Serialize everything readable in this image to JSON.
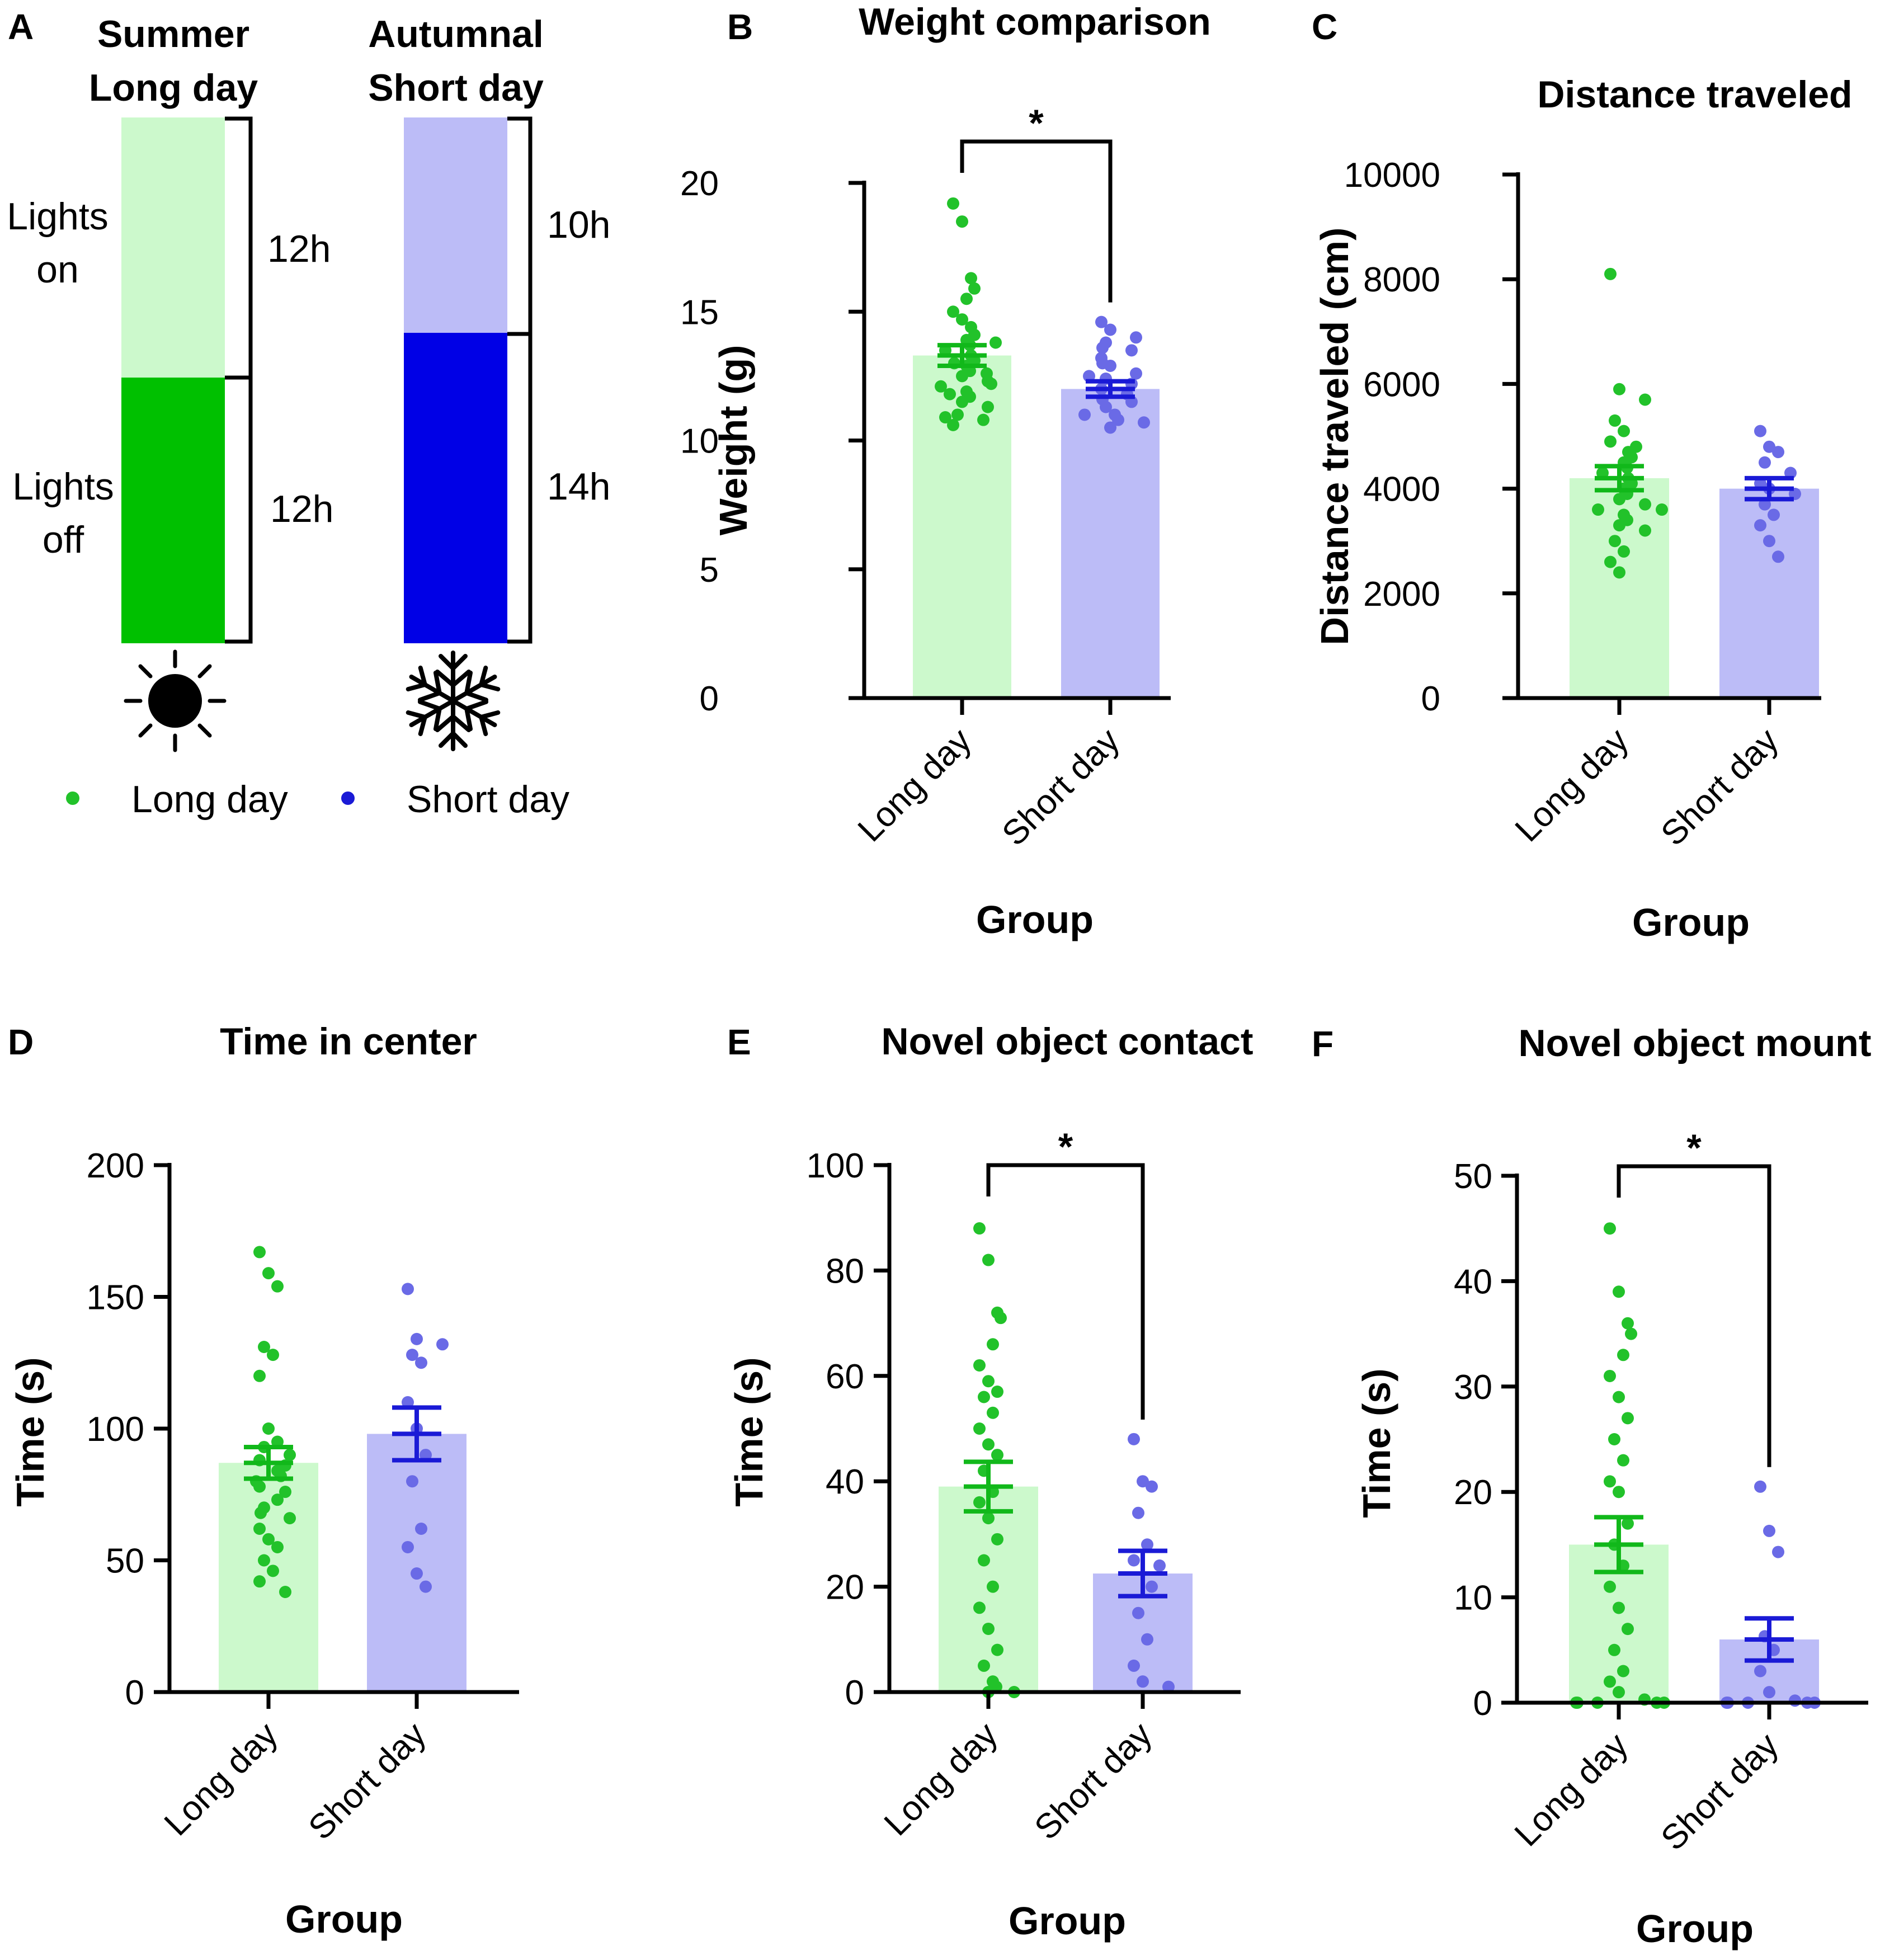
{
  "colors": {
    "long_light": "#ccf9cc",
    "long_dark": "#00c000",
    "long_dot": "#22c22a",
    "short_light": "#bcbcf7",
    "short_dark": "#0000e6",
    "short_dot": "#6a6ae6",
    "short_err": "#1a1ad6",
    "long_err": "#11b81a"
  },
  "panel_a": {
    "panel_label": "A",
    "summer_title": [
      "Summer",
      "Long day"
    ],
    "autumn_title": [
      "Autumnal",
      "Short day"
    ],
    "lights_on": [
      "Lights",
      "on"
    ],
    "lights_off": [
      "Lights",
      "off"
    ],
    "summer_on_hours": "12h",
    "summer_off_hours": "12h",
    "autumn_on_hours": "10h",
    "autumn_off_hours": "14h",
    "summer_icon": "sun-icon",
    "autumn_icon": "snowflake-icon",
    "legend": [
      "Long day",
      "Short day"
    ]
  },
  "chart_data": [
    {
      "panel_label": "B",
      "type": "bar",
      "title": "Weight comparison",
      "xlabel": "Group",
      "ylabel": "Weight (g)",
      "categories": [
        "Long day",
        "Short day"
      ],
      "ylim": [
        0,
        20
      ],
      "yticks": [
        0,
        5,
        10,
        15,
        20
      ],
      "values": [
        13.3,
        12.0
      ],
      "sem": [
        0.4,
        0.3
      ],
      "significance": "*",
      "points": [
        [
          19.2,
          18.5,
          16.3,
          15.9,
          15.5,
          15.0,
          14.7,
          14.4,
          14.1,
          13.9,
          13.7,
          13.5,
          13.3,
          13.1,
          12.9,
          12.7,
          12.5,
          12.3,
          12.1,
          11.9,
          11.7,
          11.5,
          11.3,
          11.0,
          10.8,
          10.6,
          13.8,
          13.0,
          12.2,
          11.8,
          12.6,
          10.9
        ],
        [
          14.6,
          14.3,
          14.0,
          13.8,
          13.5,
          13.2,
          12.9,
          12.6,
          12.4,
          12.2,
          12.0,
          11.8,
          11.6,
          11.3,
          11.0,
          10.8,
          10.5,
          13.0,
          12.5,
          11.5,
          11.0,
          10.7,
          13.6
        ]
      ]
    },
    {
      "panel_label": "C",
      "type": "bar",
      "title": "Distance traveled",
      "xlabel": "Group",
      "ylabel": "Distance traveled (cm)",
      "categories": [
        "Long day",
        "Short day"
      ],
      "ylim": [
        0,
        10000
      ],
      "yticks": [
        0,
        2000,
        4000,
        6000,
        8000,
        10000
      ],
      "values": [
        4200,
        4000
      ],
      "sem": [
        230,
        200
      ],
      "significance": "",
      "points": [
        [
          8100,
          5900,
          5700,
          5300,
          5100,
          4900,
          4800,
          4700,
          4600,
          4500,
          4400,
          4300,
          4200,
          4100,
          4000,
          3900,
          3800,
          3700,
          3600,
          3500,
          3400,
          3300,
          3200,
          3000,
          2800,
          2600,
          2400,
          3600
        ],
        [
          5100,
          4800,
          4700,
          4500,
          4300,
          4100,
          4000,
          3900,
          3700,
          3500,
          3300,
          3000,
          2700
        ]
      ]
    },
    {
      "panel_label": "D",
      "type": "bar",
      "title": "Time in center",
      "xlabel": "Group",
      "ylabel": "Time (s)",
      "categories": [
        "Long day",
        "Short day"
      ],
      "ylim": [
        0,
        200
      ],
      "yticks": [
        0,
        50,
        100,
        150,
        200
      ],
      "values": [
        87,
        98
      ],
      "sem": [
        6,
        10
      ],
      "significance": "",
      "points": [
        [
          167,
          159,
          154,
          131,
          128,
          120,
          100,
          95,
          93,
          90,
          88,
          86,
          84,
          82,
          80,
          78,
          76,
          73,
          70,
          66,
          62,
          58,
          55,
          50,
          46,
          42,
          38,
          68
        ],
        [
          153,
          134,
          132,
          128,
          125,
          110,
          100,
          90,
          80,
          62,
          55,
          45,
          40
        ]
      ]
    },
    {
      "panel_label": "E",
      "type": "bar",
      "title": "Novel object contact",
      "xlabel": "Group",
      "ylabel": "Time (s)",
      "categories": [
        "Long day",
        "Short day"
      ],
      "ylim": [
        0,
        100
      ],
      "yticks": [
        0,
        20,
        40,
        60,
        80,
        100
      ],
      "values": [
        39,
        22.5
      ],
      "sem": [
        4.7,
        4.3
      ],
      "significance": "*",
      "points": [
        [
          88,
          82,
          72,
          71,
          66,
          62,
          59,
          57,
          56,
          53,
          50,
          47,
          45,
          42,
          38,
          36,
          33,
          29,
          25,
          20,
          16,
          12,
          8,
          5,
          2,
          1,
          0,
          0
        ],
        [
          48,
          40,
          39,
          34,
          28,
          25,
          24,
          20,
          15,
          10,
          5,
          2,
          1
        ]
      ]
    },
    {
      "panel_label": "F",
      "type": "bar",
      "title": "Novel object mount",
      "xlabel": "Group",
      "ylabel": "Time (s)",
      "categories": [
        "Long day",
        "Short day"
      ],
      "ylim": [
        0,
        50
      ],
      "yticks": [
        0,
        10,
        20,
        30,
        40,
        50
      ],
      "values": [
        15,
        6
      ],
      "sem": [
        2.6,
        2.0
      ],
      "significance": "*",
      "points": [
        [
          45,
          39,
          36,
          35,
          33,
          31,
          29,
          27,
          25,
          23,
          21,
          20,
          17,
          15,
          13,
          11,
          9,
          7,
          5,
          3,
          2,
          1,
          0.3,
          0,
          0,
          0,
          0,
          0
        ],
        [
          20.5,
          16.3,
          14.3,
          6.3,
          5.0,
          3.0,
          1.0,
          0.2,
          0,
          0,
          0,
          0,
          0
        ]
      ]
    }
  ]
}
